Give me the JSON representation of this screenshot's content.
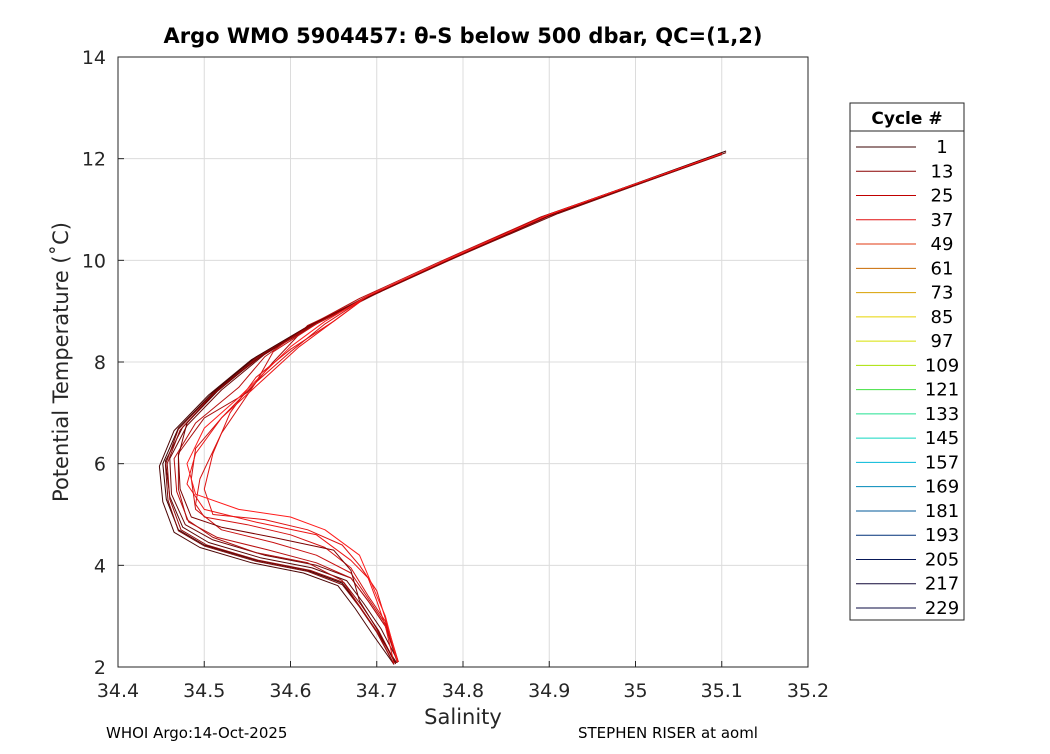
{
  "title": "Argo WMO 5904457: θ-S below 500 dbar,  QC=(1,2)",
  "footer_left": "WHOI Argo:14-Oct-2025",
  "footer_right": "STEPHEN RISER at aoml",
  "chart_data": {
    "type": "line",
    "title": "Argo WMO 5904457: θ-S below 500 dbar,  QC=(1,2)",
    "xlabel": "Salinity",
    "ylabel": "Potential Temperature (˚C)",
    "xlim": [
      34.4,
      35.2
    ],
    "ylim": [
      2,
      14
    ],
    "xticks": [
      "34.4",
      "34.5",
      "34.6",
      "34.7",
      "34.8",
      "34.9",
      "35",
      "35.1",
      "35.2"
    ],
    "yticks": [
      "2",
      "4",
      "6",
      "8",
      "10",
      "12",
      "14"
    ],
    "grid": true,
    "legend_title": "Cycle #",
    "legend_placement": "right-outside",
    "legend": [
      {
        "label": "1",
        "color": "#3a0000"
      },
      {
        "label": "13",
        "color": "#8a0000"
      },
      {
        "label": "25",
        "color": "#c00000"
      },
      {
        "label": "37",
        "color": "#e01010"
      },
      {
        "label": "49",
        "color": "#e03a10"
      },
      {
        "label": "61",
        "color": "#c86a00"
      },
      {
        "label": "73",
        "color": "#d8a000"
      },
      {
        "label": "85",
        "color": "#e8d400"
      },
      {
        "label": "97",
        "color": "#d8e000"
      },
      {
        "label": "109",
        "color": "#a8e000"
      },
      {
        "label": "121",
        "color": "#40e040"
      },
      {
        "label": "133",
        "color": "#20e090"
      },
      {
        "label": "145",
        "color": "#10d8c0"
      },
      {
        "label": "157",
        "color": "#00b8d8"
      },
      {
        "label": "169",
        "color": "#0088b8"
      },
      {
        "label": "181",
        "color": "#005898"
      },
      {
        "label": "193",
        "color": "#003078"
      },
      {
        "label": "205",
        "color": "#081858"
      },
      {
        "label": "217",
        "color": "#100838"
      },
      {
        "label": "229",
        "color": "#0a0a40"
      }
    ],
    "series": [
      {
        "color": "#3a0000",
        "x": [
          35.105,
          34.9,
          34.78,
          34.69,
          34.62,
          34.56,
          34.51,
          34.47,
          34.452,
          34.456,
          34.47,
          34.5,
          34.56,
          34.62,
          34.66,
          34.68,
          34.7,
          34.723
        ],
        "y": [
          12.15,
          10.9,
          10.0,
          9.3,
          8.7,
          8.1,
          7.4,
          6.7,
          6.0,
          5.3,
          4.7,
          4.4,
          4.1,
          3.9,
          3.65,
          3.2,
          2.7,
          2.08
        ]
      },
      {
        "color": "#4a0404",
        "x": [
          35.1,
          34.89,
          34.775,
          34.685,
          34.615,
          34.555,
          34.505,
          34.465,
          34.448,
          34.452,
          34.465,
          34.495,
          34.555,
          34.615,
          34.655,
          34.675,
          34.695,
          34.72
        ],
        "y": [
          12.1,
          10.85,
          9.95,
          9.25,
          8.65,
          8.05,
          7.35,
          6.65,
          5.95,
          5.25,
          4.65,
          4.35,
          4.05,
          3.85,
          3.6,
          3.15,
          2.65,
          2.05
        ]
      },
      {
        "color": "#5a0606",
        "x": [
          35.1,
          34.9,
          34.78,
          34.69,
          34.625,
          34.565,
          34.515,
          34.475,
          34.455,
          34.46,
          34.475,
          34.505,
          34.565,
          34.625,
          34.665,
          34.685,
          34.705,
          34.725
        ],
        "y": [
          12.12,
          10.88,
          9.98,
          9.28,
          8.72,
          8.12,
          7.42,
          6.72,
          6.05,
          5.35,
          4.75,
          4.45,
          4.15,
          3.95,
          3.7,
          3.25,
          2.75,
          2.1
        ]
      },
      {
        "color": "#6e0808",
        "x": [
          35.105,
          34.91,
          34.79,
          34.7,
          34.63,
          34.57,
          34.52,
          34.48,
          34.46,
          34.462,
          34.478,
          34.51,
          34.57,
          34.63,
          34.67,
          34.69,
          34.71,
          34.725
        ],
        "y": [
          12.12,
          10.92,
          10.05,
          9.35,
          8.75,
          8.15,
          7.45,
          6.75,
          6.1,
          5.4,
          4.8,
          4.5,
          4.2,
          4.0,
          3.75,
          3.3,
          2.8,
          2.1
        ]
      },
      {
        "color": "#800a0a",
        "x": [
          35.1,
          34.9,
          34.78,
          34.69,
          34.62,
          34.56,
          34.51,
          34.47,
          34.455,
          34.458,
          34.47,
          34.5,
          34.56,
          34.62,
          34.66,
          34.68,
          34.7,
          34.72
        ],
        "y": [
          12.08,
          10.87,
          9.97,
          9.27,
          8.68,
          8.08,
          7.38,
          6.68,
          5.98,
          5.28,
          4.68,
          4.38,
          4.08,
          3.88,
          3.62,
          3.18,
          2.68,
          2.05
        ]
      },
      {
        "color": "#940c0c",
        "x": [
          35.1,
          34.895,
          34.775,
          34.685,
          34.62,
          34.56,
          34.51,
          34.472,
          34.457,
          34.46,
          34.473,
          34.503,
          34.563,
          34.623,
          34.662,
          34.682,
          34.702,
          34.722
        ],
        "y": [
          12.1,
          10.86,
          9.96,
          9.26,
          8.66,
          8.06,
          7.36,
          6.66,
          6.0,
          5.3,
          4.7,
          4.4,
          4.1,
          3.9,
          3.66,
          3.22,
          2.72,
          2.07
        ]
      },
      {
        "color": "#a80e0e",
        "x": [
          35.1,
          34.9,
          34.78,
          34.69,
          34.62,
          34.58,
          34.55,
          34.5,
          34.47,
          34.47,
          34.48,
          34.51,
          34.56,
          34.62,
          34.66,
          34.68,
          34.7,
          34.72
        ],
        "y": [
          12.1,
          10.88,
          9.98,
          9.28,
          8.72,
          8.0,
          7.4,
          6.9,
          6.2,
          5.5,
          4.9,
          4.55,
          4.25,
          4.05,
          3.7,
          3.2,
          2.7,
          2.06
        ]
      },
      {
        "color": "#b81010",
        "x": [
          35.1,
          34.89,
          34.77,
          34.68,
          34.62,
          34.57,
          34.54,
          34.49,
          34.465,
          34.468,
          34.482,
          34.515,
          34.575,
          34.63,
          34.67,
          34.69,
          34.71,
          34.724
        ],
        "y": [
          12.1,
          10.85,
          9.95,
          9.25,
          8.7,
          8.1,
          7.5,
          6.8,
          6.1,
          5.45,
          4.85,
          4.55,
          4.3,
          4.05,
          3.75,
          3.3,
          2.8,
          2.08
        ]
      },
      {
        "color": "#c81010",
        "x": [
          35.1,
          34.9,
          34.78,
          34.69,
          34.63,
          34.58,
          34.56,
          34.52,
          34.49,
          34.485,
          34.49,
          34.52,
          34.58,
          34.63,
          34.67,
          34.69,
          34.71,
          34.725
        ],
        "y": [
          12.1,
          10.9,
          10.0,
          9.3,
          8.75,
          8.2,
          7.6,
          6.9,
          6.3,
          5.7,
          5.1,
          4.7,
          4.45,
          4.2,
          3.85,
          3.35,
          2.85,
          2.1
        ]
      },
      {
        "color": "#d41212",
        "x": [
          35.1,
          34.9,
          34.78,
          34.69,
          34.64,
          34.6,
          34.56,
          34.52,
          34.495,
          34.49,
          34.5,
          34.55,
          34.6,
          34.64,
          34.67,
          34.69,
          34.71,
          34.725
        ],
        "y": [
          12.1,
          10.9,
          10.0,
          9.3,
          8.75,
          8.2,
          7.6,
          6.6,
          5.7,
          5.2,
          4.95,
          4.8,
          4.6,
          4.35,
          3.95,
          3.4,
          2.9,
          2.1
        ]
      },
      {
        "color": "#e01212",
        "x": [
          35.1,
          34.9,
          34.78,
          34.69,
          34.65,
          34.6,
          34.56,
          34.53,
          34.51,
          34.5,
          34.51,
          34.57,
          34.62,
          34.66,
          34.68,
          34.7,
          34.71,
          34.725
        ],
        "y": [
          12.1,
          10.9,
          10.0,
          9.3,
          8.8,
          8.25,
          7.7,
          7.0,
          6.2,
          5.5,
          5.0,
          4.9,
          4.7,
          4.4,
          4.0,
          3.5,
          2.95,
          2.1
        ]
      },
      {
        "color": "#ee1414",
        "x": [
          35.1,
          34.9,
          34.78,
          34.69,
          34.65,
          34.61,
          34.565,
          34.52,
          34.49,
          34.48,
          34.5,
          34.56,
          34.63,
          34.67,
          34.69,
          34.7,
          34.71,
          34.72
        ],
        "y": [
          12.1,
          10.9,
          10.0,
          9.3,
          8.8,
          8.3,
          7.6,
          6.9,
          6.2,
          5.6,
          5.1,
          4.85,
          4.6,
          4.1,
          3.75,
          3.3,
          2.8,
          2.08
        ]
      },
      {
        "color": "#7a0000",
        "x": [
          35.1,
          34.9,
          34.78,
          34.69,
          34.62,
          34.565,
          34.515,
          34.48,
          34.47,
          34.472,
          34.485,
          34.52,
          34.58,
          34.65,
          34.67,
          34.68,
          34.7,
          34.722
        ],
        "y": [
          12.1,
          10.88,
          9.98,
          9.28,
          8.7,
          8.1,
          7.45,
          6.8,
          6.15,
          5.5,
          4.95,
          4.75,
          4.55,
          4.3,
          3.9,
          3.3,
          2.75,
          2.06
        ]
      },
      {
        "color": "#ff1c1c",
        "x": [
          35.1,
          34.9,
          34.78,
          34.69,
          34.64,
          34.6,
          34.57,
          34.54,
          34.5,
          34.48,
          34.49,
          34.54,
          34.6,
          34.64,
          34.68,
          34.695,
          34.71,
          34.724
        ],
        "y": [
          12.1,
          10.9,
          10.0,
          9.3,
          8.8,
          8.3,
          7.8,
          7.3,
          6.7,
          6.0,
          5.4,
          5.1,
          4.95,
          4.7,
          4.2,
          3.6,
          3.0,
          2.1
        ]
      }
    ]
  }
}
